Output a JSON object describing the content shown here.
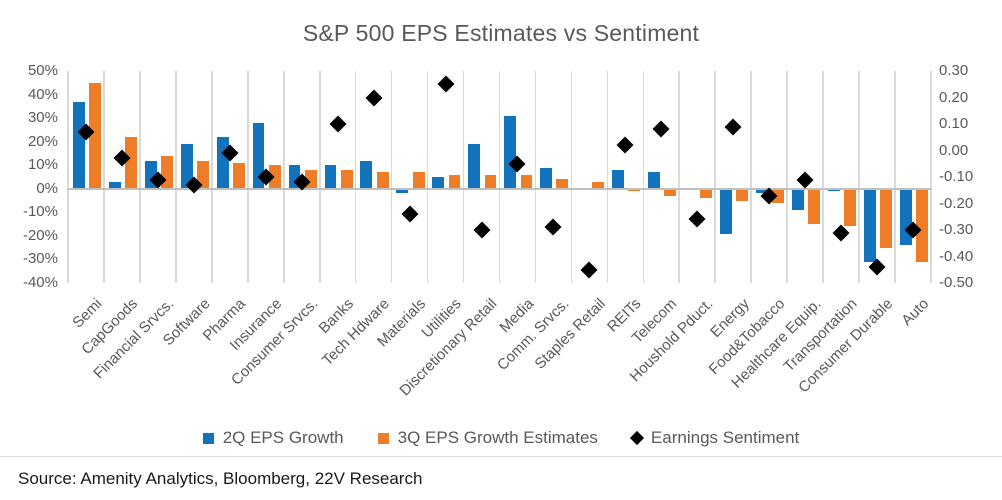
{
  "title": "S&P 500 EPS Estimates vs Sentiment",
  "source": "Source: Amenity Analytics, Bloomberg, 22V Research",
  "colors": {
    "bar_2q": "#1272BB",
    "bar_3q": "#EF7D28",
    "sentiment": "#000000",
    "gridline": "#D9D9D9",
    "text": "#595959"
  },
  "legend": [
    {
      "label": "2Q EPS Growth",
      "marker": "square",
      "color": "#1272BB"
    },
    {
      "label": "3Q EPS Growth Estimates",
      "marker": "square",
      "color": "#EF7D28"
    },
    {
      "label": "Earnings Sentiment",
      "marker": "diamond",
      "color": "#000000"
    }
  ],
  "chart_data": {
    "type": "bar",
    "subtype": "grouped bars with diamond scatter overlay on secondary axis",
    "title": "S&P 500 EPS Estimates vs Sentiment",
    "categories": [
      "Semi",
      "CapGoods",
      "Financial Srvcs.",
      "Software",
      "Pharma",
      "Insurance",
      "Consumer Srvcs.",
      "Banks",
      "Tech Hdware",
      "Materials",
      "Utilities",
      "Discretionary Retail",
      "Media",
      "Comm. Srvcs.",
      "Staples Retail",
      "REITs",
      "Telecom",
      "Houshold Pduct.",
      "Energy",
      "Food&Tobacco",
      "Healthcare Equip.",
      "Transportation",
      "Consumer Durable",
      "Auto"
    ],
    "series": [
      {
        "name": "2Q EPS Growth",
        "type": "bar",
        "axis": "left",
        "unit": "percent",
        "values": [
          37,
          3,
          12,
          19,
          22,
          28,
          10,
          10,
          12,
          -2,
          5,
          19,
          31,
          9,
          0,
          8,
          7,
          0,
          -19,
          -2,
          -9,
          -1,
          -31,
          -24
        ]
      },
      {
        "name": "3Q EPS Growth Estimates",
        "type": "bar",
        "axis": "left",
        "unit": "percent",
        "values": [
          45,
          22,
          14,
          12,
          11,
          10,
          8,
          8,
          7,
          7,
          6,
          6,
          6,
          4,
          3,
          -1,
          -3,
          -4,
          -5,
          -6,
          -15,
          -16,
          -25,
          -31
        ]
      },
      {
        "name": "Earnings Sentiment",
        "type": "scatter",
        "marker": "diamond",
        "axis": "right",
        "values": [
          0.07,
          -0.03,
          -0.11,
          -0.13,
          -0.01,
          -0.1,
          -0.12,
          0.1,
          0.2,
          -0.24,
          0.25,
          -0.3,
          -0.05,
          -0.29,
          -0.45,
          0.02,
          0.08,
          -0.26,
          0.09,
          -0.17,
          -0.11,
          -0.31,
          -0.44,
          -0.3
        ]
      }
    ],
    "left_axis": {
      "min": -40,
      "max": 50,
      "step": 10,
      "format": "percent",
      "tick_labels": [
        "50%",
        "40%",
        "30%",
        "20%",
        "10%",
        "0%",
        "-10%",
        "-20%",
        "-30%",
        "-40%"
      ]
    },
    "right_axis": {
      "min": -0.5,
      "max": 0.3,
      "step": 0.1,
      "tick_labels": [
        "0.30",
        "0.20",
        "0.10",
        "0.00",
        "-0.10",
        "-0.20",
        "-0.30",
        "-0.40",
        "-0.50"
      ]
    },
    "grid": "vertical category separators only",
    "legend_position": "bottom"
  }
}
